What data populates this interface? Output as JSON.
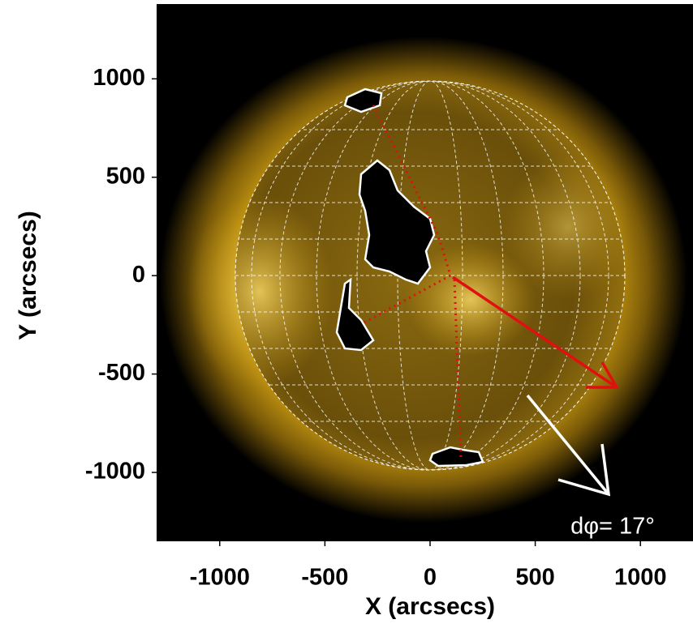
{
  "chart_data": {
    "type": "image",
    "xlabel": "X (arcsecs)",
    "ylabel": "Y (arcsecs)",
    "xlim": [
      -1300,
      1250
    ],
    "ylim": [
      -1350,
      1380
    ],
    "xticks": [
      -1000,
      -500,
      0,
      500,
      1000
    ],
    "yticks": [
      -1000,
      -500,
      0,
      500,
      1000
    ],
    "annotation": "dφ= 17°"
  }
}
